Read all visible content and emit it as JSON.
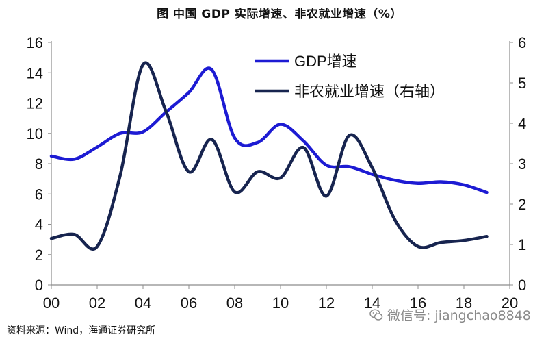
{
  "title": "图  中国 GDP 实际增速、非农就业增速（%）",
  "source": "资料来源：Wind，海通证券研究所",
  "watermark": "微信号: jiangchao8848",
  "watermark_icon": "wechat-icon",
  "chart_data": {
    "type": "line",
    "title": "中国 GDP 实际增速、非农就业增速（%）",
    "xlabel": "",
    "ylabel_left": "",
    "ylabel_right": "",
    "x_ticks": [
      "00",
      "02",
      "04",
      "06",
      "08",
      "10",
      "12",
      "14",
      "16",
      "18",
      "20"
    ],
    "x_range": [
      2000,
      2020
    ],
    "ylim_left": [
      0,
      16
    ],
    "yticks_left": [
      "0",
      "2",
      "4",
      "6",
      "8",
      "10",
      "12",
      "14",
      "16"
    ],
    "ylim_right": [
      0,
      6
    ],
    "yticks_right": [
      "0",
      "1",
      "2",
      "3",
      "4",
      "5",
      "6"
    ],
    "grid": false,
    "legend_position": "top-center",
    "series": [
      {
        "name": "GDP增速",
        "axis": "left",
        "color": "#1d1bd3",
        "x": [
          2000,
          2001,
          2002,
          2003,
          2004,
          2005,
          2006,
          2007,
          2008,
          2009,
          2010,
          2011,
          2012,
          2013,
          2014,
          2015,
          2016,
          2017,
          2018,
          2019
        ],
        "values": [
          8.5,
          8.3,
          9.1,
          10.0,
          10.1,
          11.4,
          12.7,
          14.2,
          9.7,
          9.4,
          10.6,
          9.5,
          7.9,
          7.8,
          7.3,
          6.9,
          6.7,
          6.8,
          6.6,
          6.1
        ]
      },
      {
        "name": "非农就业增速（右轴）",
        "axis": "right",
        "color": "#17244f",
        "x": [
          2000,
          2001,
          2002,
          2003,
          2004,
          2005,
          2006,
          2007,
          2008,
          2009,
          2010,
          2011,
          2012,
          2013,
          2014,
          2015,
          2016,
          2017,
          2018,
          2019
        ],
        "values": [
          1.15,
          1.25,
          0.95,
          2.7,
          5.45,
          4.3,
          2.8,
          3.6,
          2.3,
          2.8,
          2.65,
          3.4,
          2.2,
          3.7,
          2.9,
          1.6,
          0.95,
          1.05,
          1.1,
          1.2
        ]
      }
    ]
  }
}
